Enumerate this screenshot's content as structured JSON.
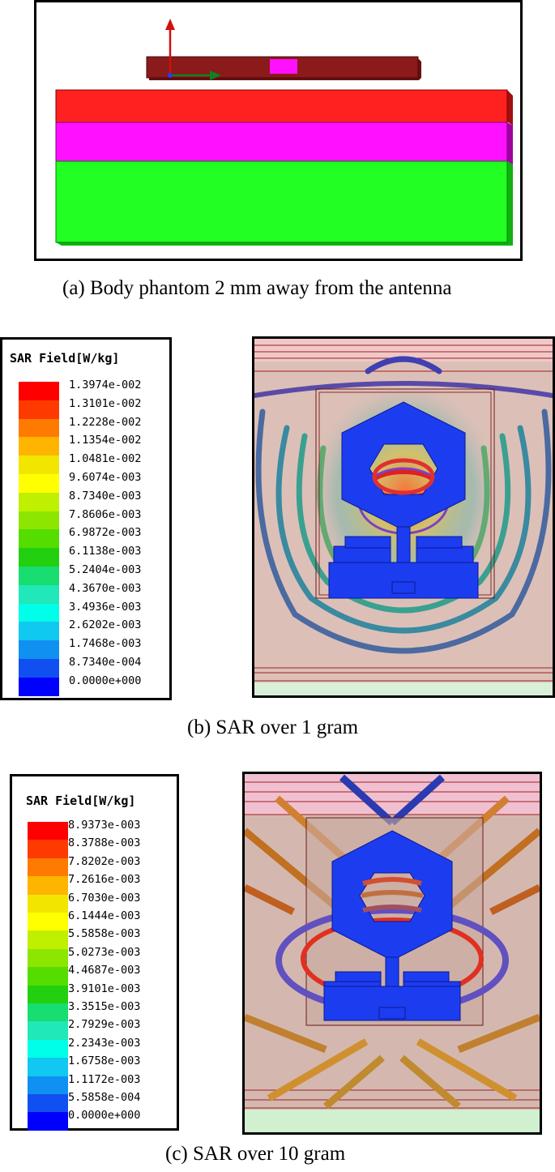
{
  "captions": {
    "a": "(a)  Body phantom 2 mm away from the antenna",
    "b": "(b)  SAR over 1 gram",
    "c": "(c)  SAR over 10 gram"
  },
  "legend_1g": {
    "title": "SAR Field[W/kg]",
    "values": [
      "1.3974e-002",
      "1.3101e-002",
      "1.2228e-002",
      "1.1354e-002",
      "1.0481e-002",
      "9.6074e-003",
      "8.7340e-003",
      "7.8606e-003",
      "6.9872e-003",
      "6.1138e-003",
      "5.2404e-003",
      "4.3670e-003",
      "3.4936e-003",
      "2.6202e-003",
      "1.7468e-003",
      "8.7340e-004",
      "0.0000e+000"
    ]
  },
  "legend_10g": {
    "title": "SAR Field[W/kg]",
    "values": [
      "8.9373e-003",
      "8.3788e-003",
      "7.8202e-003",
      "7.2616e-003",
      "6.7030e-003",
      "6.1444e-003",
      "5.5858e-003",
      "5.0273e-003",
      "4.4687e-003",
      "3.9101e-003",
      "3.3515e-003",
      "2.7929e-003",
      "2.2343e-003",
      "1.6758e-003",
      "1.1172e-003",
      "5.5858e-004",
      "0.0000e+000"
    ]
  },
  "scale_colors": [
    "#ff0000",
    "#ff3a00",
    "#ff7a00",
    "#ffb400",
    "#f2e600",
    "#ffff00",
    "#bff000",
    "#8ce600",
    "#55dd00",
    "#22d010",
    "#18dd70",
    "#20e8b8",
    "#00ffe8",
    "#10c8f0",
    "#1090f0",
    "#1050f0",
    "#0000ff"
  ],
  "colors": {
    "skin": "#ff2020",
    "fat": "#ff10ff",
    "muscle": "#22ff22",
    "substrate": "#8b1a1a",
    "antenna": "#1c3cf0",
    "phantom_bg": "#d9b8b0"
  }
}
